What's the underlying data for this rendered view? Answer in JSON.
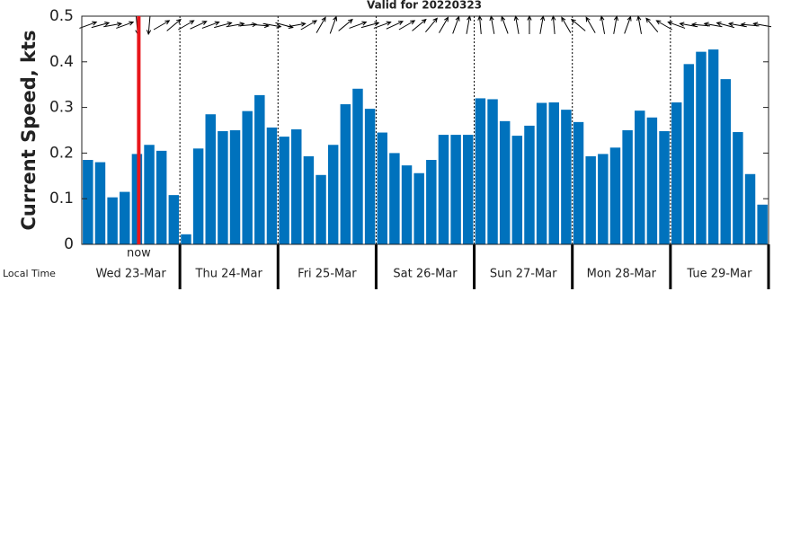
{
  "chart_data": {
    "type": "bar",
    "title": "Valid for 20220323",
    "y_label": "Current Speed, kts",
    "x_label": "Local Time",
    "days": [
      "Wed 23-Mar",
      "Thu 24-Mar",
      "Fri 25-Mar",
      "Sat 26-Mar",
      "Sun 27-Mar",
      "Mon 28-Mar",
      "Tue 29-Mar"
    ],
    "values": [
      0.185,
      0.18,
      0.103,
      0.115,
      0.198,
      0.218,
      0.205,
      0.108,
      0.022,
      0.21,
      0.285,
      0.248,
      0.25,
      0.292,
      0.327,
      0.256,
      0.236,
      0.252,
      0.193,
      0.152,
      0.218,
      0.307,
      0.341,
      0.297,
      0.245,
      0.2,
      0.173,
      0.156,
      0.185,
      0.24,
      0.24,
      0.24,
      0.32,
      0.318,
      0.27,
      0.238,
      0.26,
      0.31,
      0.311,
      0.295,
      0.268,
      0.193,
      0.198,
      0.212,
      0.25,
      0.293,
      0.278,
      0.248,
      0.311,
      0.395,
      0.422,
      0.427,
      0.362,
      0.246,
      0.154,
      0.087
    ],
    "directions": [
      20,
      15,
      10,
      20,
      -85,
      -95,
      30,
      40,
      30,
      25,
      20,
      15,
      10,
      5,
      -5,
      -10,
      -15,
      10,
      30,
      60,
      70,
      40,
      20,
      15,
      20,
      25,
      30,
      40,
      50,
      60,
      70,
      80,
      95,
      100,
      110,
      100,
      90,
      80,
      95,
      120,
      140,
      120,
      100,
      80,
      70,
      100,
      130,
      150,
      160,
      170,
      175,
      170,
      165,
      170,
      175,
      170
    ],
    "color": "#0072bd",
    "now": {
      "label": "now",
      "index": 4,
      "color": "#e8161b"
    },
    "ylim": [
      0,
      0.5
    ],
    "yticks": [
      0,
      0.1,
      0.2,
      0.3,
      0.4,
      0.5
    ]
  }
}
